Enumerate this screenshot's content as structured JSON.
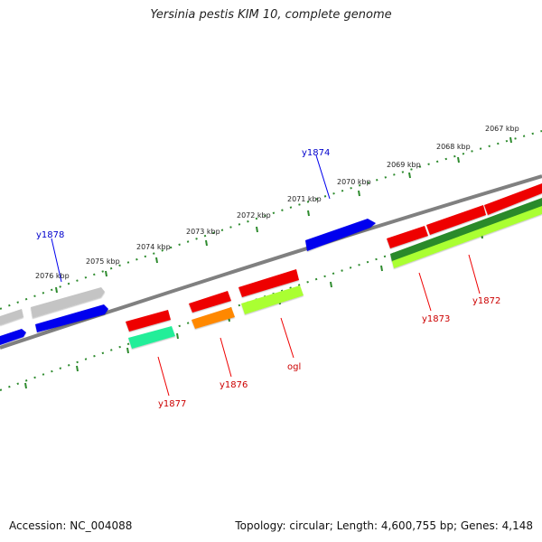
{
  "title": "Yersinia pestis KIM 10, complete genome",
  "footer": {
    "accession": "Accession: NC_004088",
    "stats": "Topology: circular; Length: 4,600,755 bp; Genes: 4,148"
  },
  "colors": {
    "backbone": "#808080",
    "tick": "#2e8b2e",
    "forward_label": "#0000cc",
    "reverse_label": "#cc0000",
    "gray_gene": "#b8b8b8",
    "blue_gene": "#0000ee",
    "red_gene": "#ee0000",
    "teal_gene": "#22ee99",
    "orange_gene": "#ff8800",
    "lime_gene": "#aaff33",
    "dark_green_gene": "#2a8a2a"
  },
  "kbp_labels": [
    "2067 kbp",
    "2068 kbp",
    "2069 kbp",
    "2070 kbp",
    "2071 kbp",
    "2072 kbp",
    "2073 kbp",
    "2074 kbp",
    "2075 kbp",
    "2076 kbp"
  ],
  "forward_gene_labels": [
    "y1874",
    "y1878"
  ],
  "reverse_gene_labels": [
    "y1872",
    "y1873",
    "ogl",
    "y1876",
    "y1877"
  ]
}
